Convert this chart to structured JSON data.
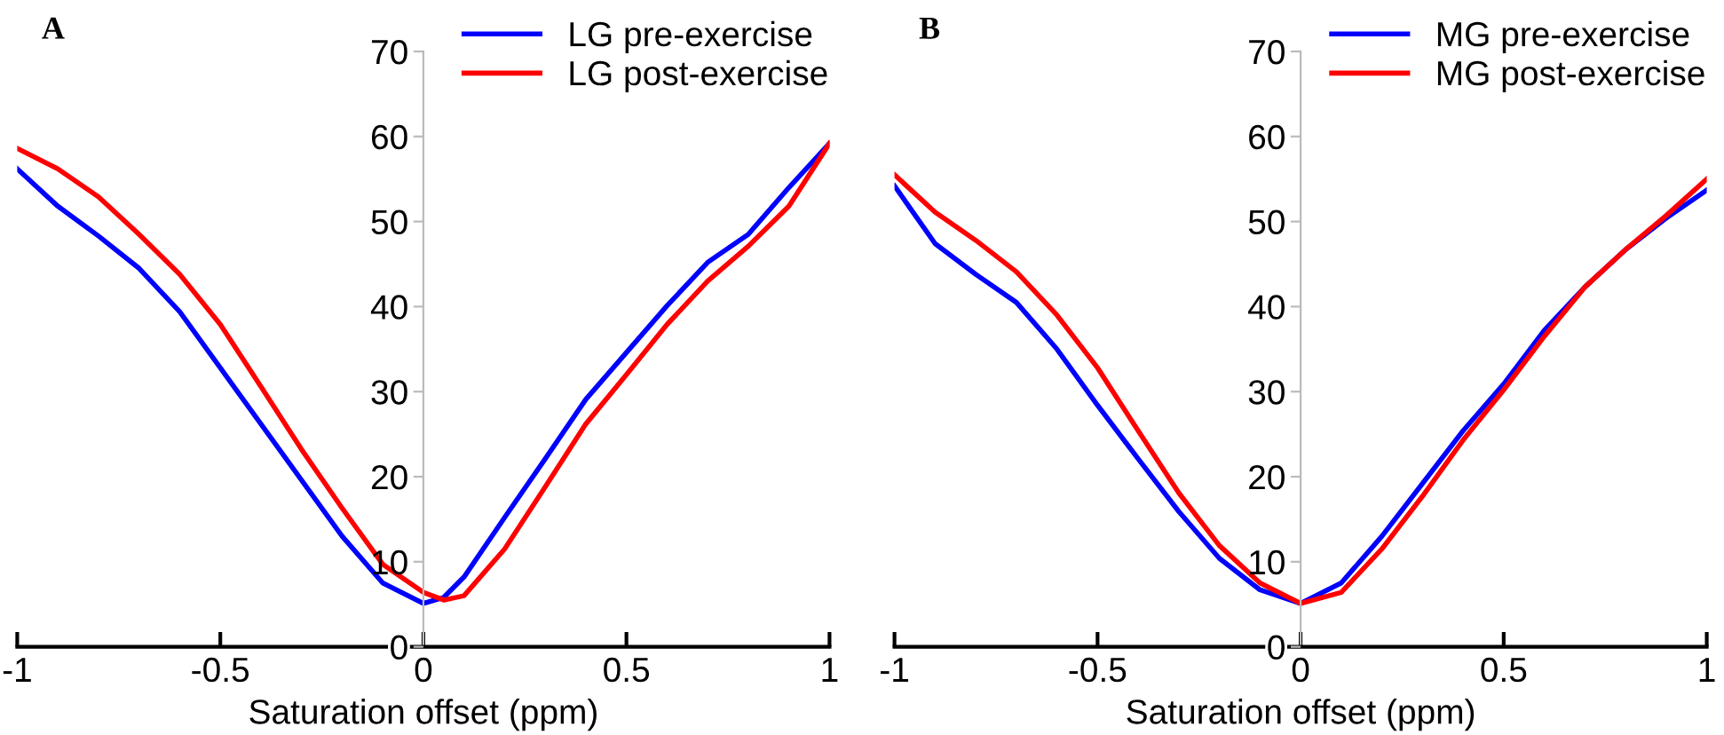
{
  "chart_data": [
    {
      "type": "line",
      "title": "A",
      "xlabel": "Saturation offset (ppm)",
      "x": [
        -1,
        -0.9,
        -0.8,
        -0.7,
        -0.6,
        -0.5,
        -0.4,
        -0.3,
        -0.2,
        -0.1,
        0,
        0.05,
        0.1,
        0.2,
        0.3,
        0.4,
        0.5,
        0.6,
        0.7,
        0.8,
        0.9,
        1
      ],
      "series": [
        {
          "name": "LG pre-exercise",
          "color": "#0000ff",
          "values": [
            56.2,
            51.8,
            48.3,
            44.5,
            39.4,
            32.8,
            26.2,
            19.6,
            13.0,
            7.5,
            5.1,
            5.8,
            8.2,
            15.2,
            22.1,
            29.1,
            34.6,
            40.1,
            45.2,
            48.5,
            54.0,
            59.2
          ]
        },
        {
          "name": "LG post-exercise",
          "color": "#ff0000",
          "values": [
            58.6,
            56.2,
            52.9,
            48.5,
            43.8,
            37.9,
            30.6,
            23.2,
            16.3,
            9.7,
            6.4,
            5.5,
            6.0,
            11.5,
            18.8,
            26.2,
            32.0,
            37.9,
            43.0,
            47.1,
            51.8,
            59.2
          ]
        }
      ],
      "xlim": [
        -1,
        1
      ],
      "xticks": [
        -1,
        -0.5,
        0,
        0.5,
        1
      ],
      "ylim": [
        0,
        70
      ],
      "yticks": [
        0,
        10,
        20,
        30,
        40,
        50,
        60,
        70
      ],
      "legend": "top right",
      "grid": false
    },
    {
      "type": "line",
      "title": "B",
      "xlabel": "Saturation offset (ppm)",
      "x": [
        -1,
        -0.9,
        -0.8,
        -0.7,
        -0.6,
        -0.5,
        -0.4,
        -0.3,
        -0.2,
        -0.1,
        0,
        0.1,
        0.2,
        0.3,
        0.4,
        0.5,
        0.6,
        0.7,
        0.8,
        0.9,
        1
      ],
      "series": [
        {
          "name": "MG pre-exercise",
          "color": "#0000ff",
          "values": [
            54.2,
            47.4,
            43.8,
            40.5,
            35.0,
            28.4,
            22.1,
            15.9,
            10.4,
            6.7,
            5.1,
            7.5,
            13.0,
            19.2,
            25.4,
            30.9,
            37.2,
            42.3,
            46.7,
            50.4,
            53.7
          ]
        },
        {
          "name": "MG post-exercise",
          "color": "#ff0000",
          "values": [
            55.5,
            51.1,
            47.8,
            44.1,
            39.0,
            32.8,
            25.4,
            18.1,
            11.9,
            7.5,
            5.1,
            6.4,
            11.5,
            17.7,
            24.3,
            30.2,
            36.5,
            42.3,
            46.7,
            50.7,
            55.0
          ]
        }
      ],
      "xlim": [
        -1,
        1
      ],
      "xticks": [
        -1,
        -0.5,
        0,
        0.5,
        1
      ],
      "ylim": [
        0,
        70
      ],
      "yticks": [
        0,
        10,
        20,
        30,
        40,
        50,
        60,
        70
      ],
      "legend": "top right",
      "grid": false
    }
  ]
}
